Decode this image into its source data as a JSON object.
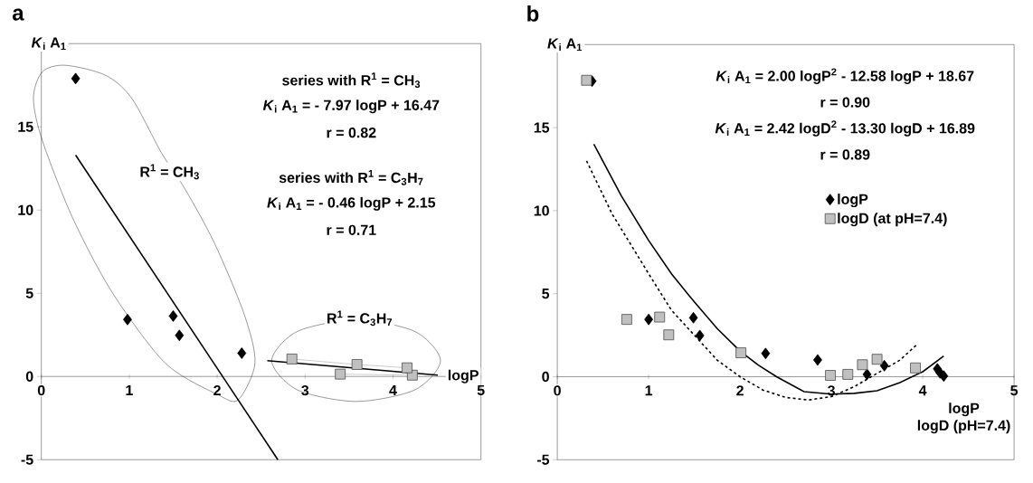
{
  "chart_data": [
    {
      "type": "scatter",
      "title": "a",
      "ylabel": "*K*$_{i}$ A$_{1}$",
      "xlabel": "logP",
      "xlim": [
        0,
        5
      ],
      "ylim": [
        -5,
        20
      ],
      "xticks": [
        0,
        1,
        2,
        3,
        4,
        5
      ],
      "yticks": [
        -5,
        0,
        5,
        10,
        15
      ],
      "series": [
        {
          "color": "#000000",
          "marker": "diamond",
          "x": [
            0.39,
            0.98,
            1.5,
            1.57,
            2.28
          ],
          "values": [
            17.9,
            3.42,
            3.63,
            2.47,
            1.4
          ]
        },
        {
          "type": "line",
          "color": "#c0c0c0",
          "marker": "square",
          "x": [
            3.4,
            4.22,
            4.16,
            3.59,
            2.85
          ],
          "values": [
            0.14,
            0.08,
            0.52,
            0.72,
            1.05
          ]
        },
        {
          "type": "line",
          "color": "#000000",
          "marker": "none",
          "line_style": "solid",
          "x": [
            0.39,
            2.69
          ],
          "values": [
            13.3,
            -5
          ]
        },
        {
          "type": "line",
          "color": "#000000",
          "marker": "none",
          "line_style": "solid",
          "x": [
            2.57,
            4.51
          ],
          "values": [
            0.95,
            0.08
          ]
        }
      ],
      "annotations": [
        "series with R$^{1}$ = CH$_{3}$",
        "*K*$_{i}$  A$_{1}$ = - 7.97 logP + 16.47",
        "r = 0.82",
        "series with R$^{1}$ = C$_{3}$H$_{7}$",
        "*K*$_{i}$  A$_{1}$ = - 0.46 logP + 2.15",
        "r = 0.71",
        "R$^{1}$ = CH$_{3}$",
        "R$^{1}$ = C$_{3}$H$_{7}$"
      ]
    },
    {
      "type": "scatter",
      "title": "b",
      "ylabel": "*K*$_{i}$ A$_{1}$",
      "xlabel": [
        "logP",
        "logD (pH=7.4)"
      ],
      "xlim": [
        0,
        5
      ],
      "ylim": [
        -5,
        20
      ],
      "xticks": [
        0,
        1,
        2,
        3,
        4,
        5
      ],
      "yticks": [
        -5,
        0,
        5,
        10,
        15
      ],
      "legend": "right",
      "series": [
        {
          "type": "line",
          "color": "#000000",
          "marker": "none",
          "line_style": "solid",
          "x": [
            0.4,
            0.7,
            1.0,
            1.25,
            1.5,
            1.75,
            2.0,
            2.2,
            2.4,
            2.7,
            3.0,
            3.25,
            3.5,
            3.75,
            4.0,
            4.23
          ],
          "values": [
            14.0,
            10.9,
            8.2,
            6.2,
            4.5,
            2.9,
            1.55,
            0.7,
            0,
            -0.9,
            -1.05,
            -1.0,
            -0.85,
            -0.35,
            0.3,
            1.25
          ]
        },
        {
          "type": "line",
          "color": "#000000",
          "marker": "none",
          "line_style": "dashed",
          "x": [
            0.32,
            0.6,
            0.8,
            1.0,
            1.25,
            1.5,
            1.75,
            2.0,
            2.25,
            2.5,
            2.75,
            3.0,
            3.25,
            3.5,
            3.75,
            3.93
          ],
          "values": [
            13.0,
            9.8,
            8.0,
            6.2,
            4.0,
            2.5,
            1.0,
            0,
            -0.8,
            -1.25,
            -1.4,
            -1.2,
            -0.6,
            0.2,
            1.0,
            1.9
          ]
        },
        {
          "name": "logP",
          "color": "#000000",
          "marker": "diamond",
          "x": [
            0.38,
            1.0,
            1.49,
            1.56,
            2.28,
            2.85,
            3.39,
            3.58,
            4.16,
            4.19,
            4.23
          ],
          "values": [
            17.8,
            3.45,
            3.55,
            2.48,
            1.4,
            1.01,
            0.14,
            0.66,
            0.47,
            0.23,
            0.04
          ]
        },
        {
          "name": "logD (at pH=7.4)",
          "color": "#c0c0c0",
          "marker": "square",
          "x": [
            0.32,
            0.76,
            1.12,
            1.22,
            2.01,
            2.99,
            3.18,
            3.34,
            3.5,
            3.92
          ],
          "values": [
            17.85,
            3.45,
            3.59,
            2.52,
            1.44,
            0.08,
            0.14,
            0.72,
            1.05,
            0.53
          ]
        }
      ],
      "annotations": [
        "*K*$_{i}$ A$_{1}$ = 2.00 logP$^{2}$ - 12.58 logP + 18.67",
        "r = 0.90",
        "*K*$_{i}$ A$_{1}$ = 2.42 logD$^{2}$ - 13.30 logD + 16.89",
        "r = 0.89"
      ]
    }
  ]
}
